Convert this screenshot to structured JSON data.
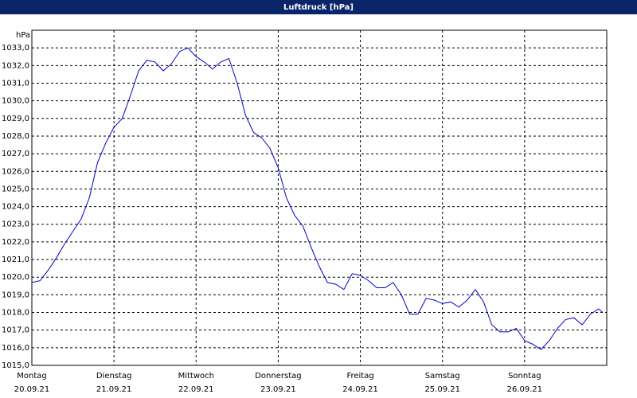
{
  "chart_data": {
    "type": "line",
    "title": "Luftdruck [hPa]",
    "y_label": "hPa",
    "color": "#0000cc",
    "grid": true,
    "xlim": [
      0,
      7
    ],
    "ylim": [
      1015,
      1034
    ],
    "xticks": [
      {
        "value": 0,
        "label": "Montag"
      },
      {
        "value": 1,
        "label": "Dienstag"
      },
      {
        "value": 2,
        "label": "Mittwoch"
      },
      {
        "value": 3,
        "label": "Donnerstag"
      },
      {
        "value": 4,
        "label": "Freitag"
      },
      {
        "value": 5,
        "label": "Samstag"
      },
      {
        "value": 6,
        "label": "Sonntag"
      }
    ],
    "xtick_dates": [
      "20.09.21",
      "21.09.21",
      "22.09.21",
      "23.09.21",
      "24.09.21",
      "25.09.21",
      "26.09.21"
    ],
    "yticks": [
      {
        "value": 1015,
        "label": "1015,0"
      },
      {
        "value": 1016,
        "label": "1016,0"
      },
      {
        "value": 1017,
        "label": "1017,0"
      },
      {
        "value": 1018,
        "label": "1018,0"
      },
      {
        "value": 1019,
        "label": "1019,0"
      },
      {
        "value": 1020,
        "label": "1020,0"
      },
      {
        "value": 1021,
        "label": "1021,0"
      },
      {
        "value": 1022,
        "label": "1022,0"
      },
      {
        "value": 1023,
        "label": "1023,0"
      },
      {
        "value": 1024,
        "label": "1024,0"
      },
      {
        "value": 1025,
        "label": "1025,0"
      },
      {
        "value": 1026,
        "label": "1026,0"
      },
      {
        "value": 1027,
        "label": "1027,0"
      },
      {
        "value": 1028,
        "label": "1028,0"
      },
      {
        "value": 1029,
        "label": "1029,0"
      },
      {
        "value": 1030,
        "label": "1030,0"
      },
      {
        "value": 1031,
        "label": "1031,0"
      },
      {
        "value": 1032,
        "label": "1032,0"
      },
      {
        "value": 1033,
        "label": "1033,0"
      }
    ],
    "x": [
      0,
      0.1,
      0.2,
      0.3,
      0.4,
      0.5,
      0.6,
      0.7,
      0.8,
      0.9,
      1,
      1.1,
      1.2,
      1.3,
      1.4,
      1.5,
      1.6,
      1.7,
      1.8,
      1.9,
      2,
      2.1,
      2.2,
      2.3,
      2.4,
      2.5,
      2.6,
      2.7,
      2.8,
      2.9,
      3,
      3.1,
      3.2,
      3.3,
      3.4,
      3.5,
      3.6,
      3.7,
      3.8,
      3.9,
      4,
      4.1,
      4.2,
      4.3,
      4.4,
      4.5,
      4.6,
      4.7,
      4.8,
      4.9,
      5,
      5.1,
      5.2,
      5.3,
      5.4,
      5.5,
      5.6,
      5.7,
      5.8,
      5.9,
      6,
      6.1,
      6.2,
      6.3,
      6.4,
      6.5,
      6.6,
      6.7,
      6.8,
      6.9,
      6.95
    ],
    "values": [
      1019.7,
      1019.8,
      1020.4,
      1021.1,
      1021.9,
      1022.6,
      1023.3,
      1024.5,
      1026.5,
      1027.6,
      1028.5,
      1029.0,
      1030.3,
      1031.7,
      1032.3,
      1032.2,
      1031.7,
      1032.1,
      1032.8,
      1033.0,
      1032.5,
      1032.2,
      1031.8,
      1032.2,
      1032.4,
      1031.0,
      1029.2,
      1028.2,
      1027.9,
      1027.3,
      1026.2,
      1024.5,
      1023.5,
      1022.9,
      1021.7,
      1020.6,
      1019.7,
      1019.6,
      1019.3,
      1020.2,
      1020.1,
      1019.8,
      1019.4,
      1019.4,
      1019.7,
      1019.0,
      1017.9,
      1017.9,
      1018.8,
      1018.7,
      1018.5,
      1018.6,
      1018.3,
      1018.7,
      1019.3,
      1018.6,
      1017.3,
      1016.9,
      1016.9,
      1017.1,
      1016.4,
      1016.2,
      1015.9,
      1016.4,
      1017.1,
      1017.6,
      1017.7,
      1017.3,
      1017.9,
      1018.2,
      1018.0
    ]
  }
}
